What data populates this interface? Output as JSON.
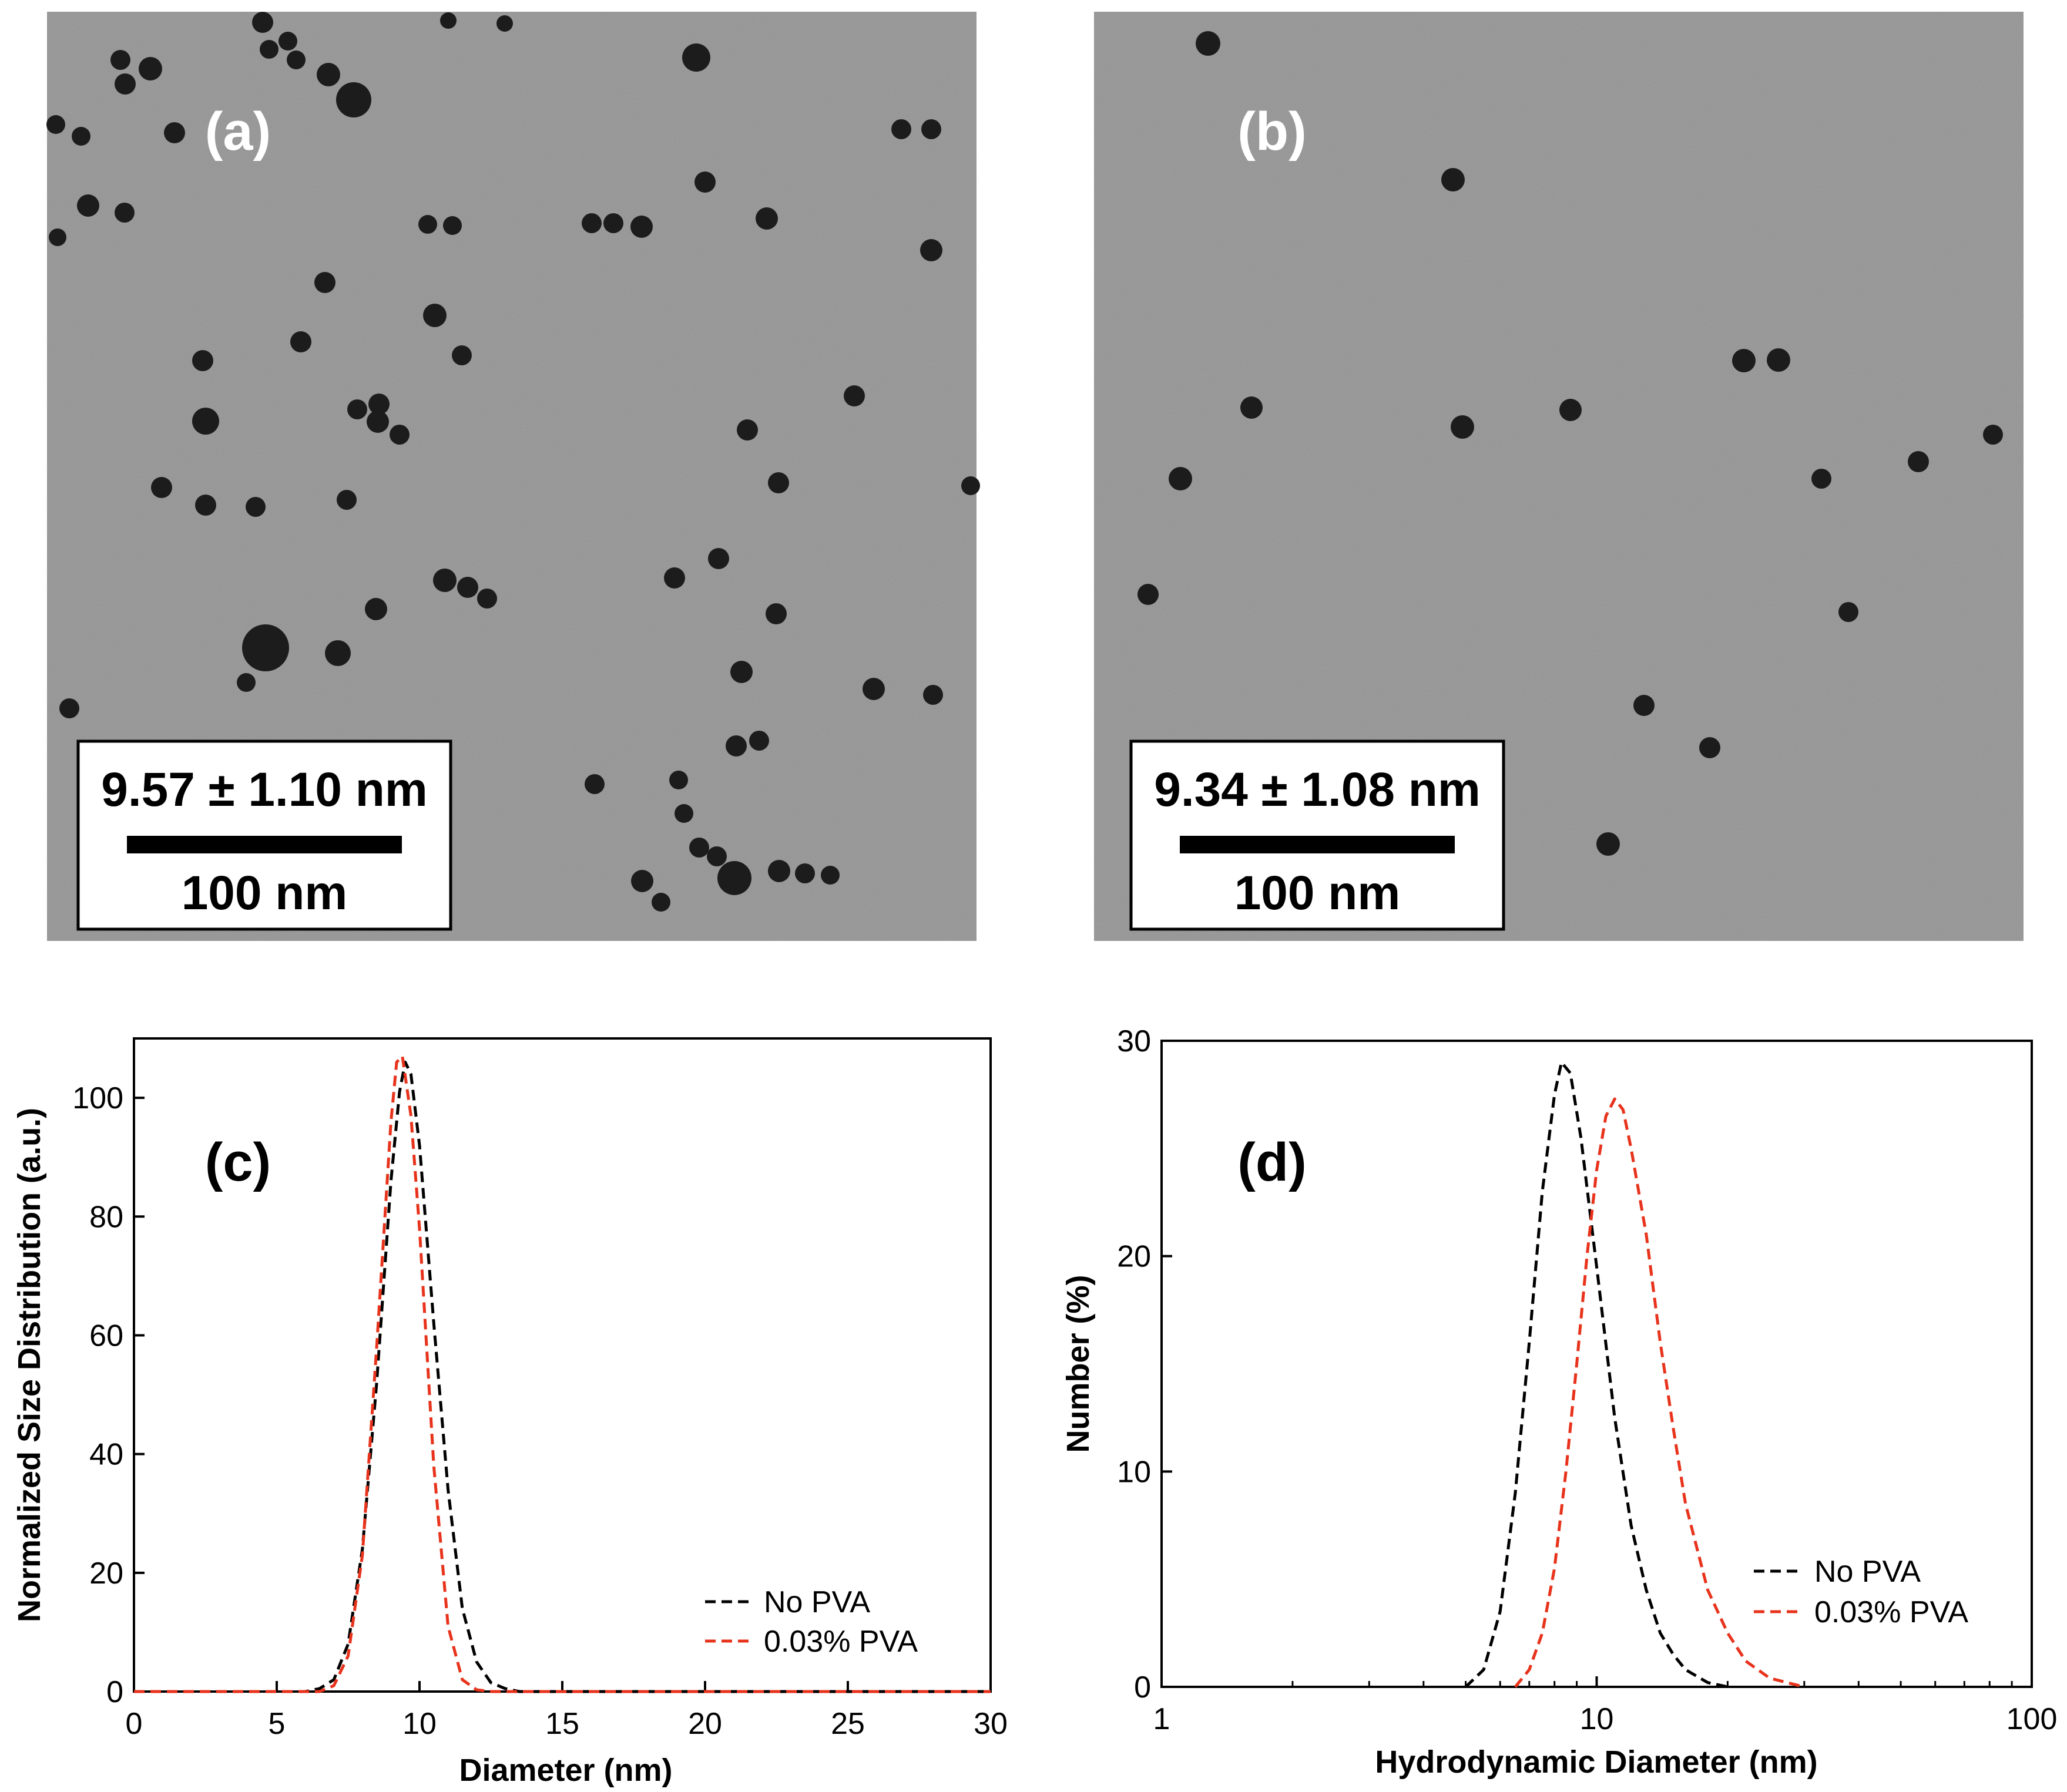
{
  "panels": {
    "a": {
      "label": "(a)",
      "size_text": "9.57 ± 1.10 nm",
      "scale_text": "100 nm"
    },
    "b": {
      "label": "(b)",
      "size_text": "9.34 ± 1.08 nm",
      "scale_text": "100 nm"
    }
  },
  "colors": {
    "tem_background": "#8a8a8a",
    "particle": "#1c1c1c",
    "series_no_pva": "#000000",
    "series_pva": "#e8331c"
  },
  "chart_data": [
    {
      "panel_label": "(c)",
      "type": "line",
      "xlabel": "Diameter (nm)",
      "ylabel": "Normalized Size Distribution (a.u.)",
      "xscale": "linear",
      "xlim": [
        0,
        30
      ],
      "ylim": [
        0,
        110
      ],
      "xticks": [
        0,
        5,
        10,
        15,
        20,
        25,
        30
      ],
      "yticks": [
        0,
        20,
        40,
        60,
        80,
        100
      ],
      "legend_position": "bottom-right",
      "series": [
        {
          "name": "No PVA",
          "color": "#000000",
          "dash": "dashed",
          "x": [
            0,
            6.0,
            6.5,
            7.0,
            7.5,
            8.0,
            8.5,
            9.0,
            9.3,
            9.5,
            9.7,
            10.0,
            10.5,
            11.0,
            11.5,
            12.0,
            12.5,
            13.0,
            13.5,
            14.0,
            30
          ],
          "y": [
            0,
            0,
            0.5,
            2,
            8,
            24,
            52,
            86,
            101,
            106,
            104,
            92,
            62,
            34,
            14,
            5,
            1.5,
            0.5,
            0,
            0,
            0
          ]
        },
        {
          "name": "0.03% PVA",
          "color": "#e8331c",
          "dash": "dashed",
          "x": [
            0,
            6.5,
            7.0,
            7.5,
            8.0,
            8.5,
            9.0,
            9.2,
            9.4,
            9.7,
            10.0,
            10.5,
            11.0,
            11.5,
            12.0,
            12.5,
            30
          ],
          "y": [
            0,
            0,
            1,
            6,
            23,
            58,
            96,
            106,
            107,
            97,
            78,
            38,
            11,
            2,
            0.3,
            0,
            0
          ]
        }
      ]
    },
    {
      "panel_label": "(d)",
      "type": "line",
      "xlabel": "Hydrodynamic Diameter (nm)",
      "ylabel": "Number (%)",
      "xscale": "log",
      "xlim": [
        1,
        100
      ],
      "ylim": [
        0,
        30
      ],
      "xticks": [
        1,
        10,
        100
      ],
      "yticks": [
        0,
        10,
        20,
        30
      ],
      "legend_position": "bottom-right",
      "series": [
        {
          "name": "No PVA",
          "color": "#000000",
          "dash": "dashed",
          "x": [
            5.0,
            5.5,
            6.0,
            6.5,
            7.0,
            7.5,
            8.0,
            8.3,
            8.7,
            9.2,
            10.0,
            11.0,
            12.0,
            13.0,
            14.0,
            15.0,
            16.0,
            18.0,
            20.0
          ],
          "y": [
            0,
            0.8,
            3.5,
            9,
            16,
            23,
            27.5,
            29,
            28.5,
            25.5,
            19.5,
            12.5,
            7.5,
            4.5,
            2.5,
            1.5,
            0.8,
            0.2,
            0
          ]
        },
        {
          "name": "0.03% PVA",
          "color": "#e8331c",
          "dash": "dashed",
          "x": [
            6.5,
            7.0,
            7.5,
            8.0,
            8.5,
            9.0,
            9.5,
            10.0,
            10.5,
            11.0,
            11.5,
            12.0,
            13.0,
            14.0,
            15.0,
            16.0,
            18.0,
            20.0,
            22.0,
            25.0,
            30.0
          ],
          "y": [
            0,
            0.8,
            2.5,
            5.5,
            10,
            15,
            20,
            24,
            26.5,
            27.3,
            26.8,
            25,
            21,
            16,
            12,
            8.5,
            4.5,
            2.5,
            1.2,
            0.4,
            0
          ]
        }
      ]
    }
  ]
}
